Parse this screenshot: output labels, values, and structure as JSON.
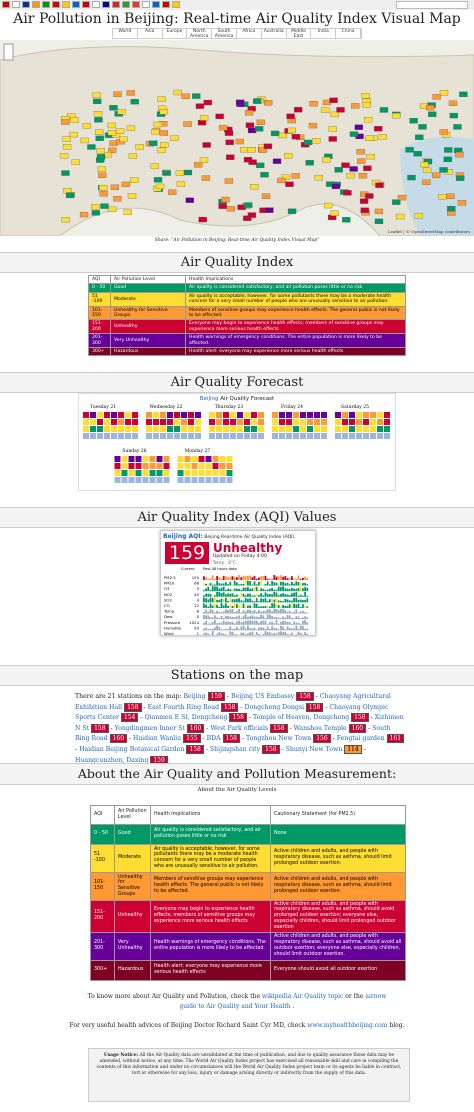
{
  "header": {
    "title": "Air Pollution in Beijing: Real-time Air Quality Index Visual Map",
    "nav": [
      "World",
      "Asia",
      "Europe",
      "North America",
      "South America",
      "Africa",
      "Australia",
      "Middle East",
      "India",
      "China"
    ]
  },
  "map": {
    "caption": "Share: \"Air Pollution in Beijing: Real-time Air Quality Index Visual Map\"",
    "attribution": "Leaflet | © OpenStreetMap contributors"
  },
  "aqi_scale": {
    "heading": "Air Quality Index",
    "colors": [
      "#009966",
      "#ffde33",
      "#ff9933",
      "#cc0033",
      "#660099",
      "#7e0023"
    ],
    "columns": [
      "AQI",
      "Air Pollution Level",
      "Health Implications"
    ],
    "rows": [
      [
        "0 - 50",
        "Good",
        "Air quality is considered satisfactory, and air pollution poses little or no risk"
      ],
      [
        "51 -100",
        "Moderate",
        "Air quality is acceptable; however, for some pollutants there may be a moderate health concern for a very small number of people who are unusually sensitive to air pollution."
      ],
      [
        "101-150",
        "Unhealthy for Sensitive Groups",
        "Members of sensitive groups may experience health effects. The general public is not likely to be affected."
      ],
      [
        "151-200",
        "Unhealthy",
        "Everyone may begin to experience health effects; members of sensitive groups may experience more serious health effects"
      ],
      [
        "201-300",
        "Very Unhealthy",
        "Health warnings of emergency conditions. The entire population is more likely to be affected."
      ],
      [
        "300+",
        "Hazardous",
        "Health alert: everyone may experience more serious health effects"
      ]
    ]
  },
  "forecast": {
    "heading": "Air Quality Forecast",
    "city": "Beijing",
    "subtitle": "Air Quality Forecast",
    "days": [
      "Tuesday 21",
      "Wednesday 22",
      "Thursday 23",
      "Friday 24",
      "Saturday 25",
      "Sunday 26",
      "Monday 27"
    ]
  },
  "realtime": {
    "heading": "Air Quality Index (AQI) Values",
    "city": "Beijing AQI:",
    "subtitle": "Beijing Real-time Air Quality Index (AQI).",
    "aqi": 159,
    "level": "Unhealthy",
    "updated": "Updated on Friday 4:00",
    "temp": "Temp.: 8°C",
    "columns": [
      "Current",
      "Past 48 hours data"
    ],
    "rows": [
      {
        "name": "PM2.5",
        "value": 159
      },
      {
        "name": "PM10",
        "value": 66
      },
      {
        "name": "O3",
        "value": 5
      },
      {
        "name": "NO2",
        "value": 40
      },
      {
        "name": "SO2",
        "value": 4
      },
      {
        "name": "CO",
        "value": 12
      },
      {
        "name": "Temp.",
        "value": 8
      },
      {
        "name": "Dew",
        "value": -5
      },
      {
        "name": "Pressure",
        "value": 1024
      },
      {
        "name": "Humidity",
        "value": 93
      },
      {
        "name": "Wind",
        "value": 1
      }
    ]
  },
  "stations": {
    "heading": "Stations on the map",
    "intro": "There are 21 stations on the map:",
    "list": [
      {
        "name": "Beijing",
        "aqi": 159
      },
      {
        "name": "Beijing US Embassy",
        "aqi": 158
      },
      {
        "name": "Chaoyang Agricultural Exhibition Hall",
        "aqi": 158
      },
      {
        "name": "East Fourth Ring Road",
        "aqi": 158
      },
      {
        "name": "Dongcheng Dongsi",
        "aqi": 158
      },
      {
        "name": "Chaoyang Olympic Sports Center",
        "aqi": 154
      },
      {
        "name": "Qianmen E St, Dongcheng",
        "aqi": 158
      },
      {
        "name": "Temple of Heaven, Dongcheng",
        "aqi": 158
      },
      {
        "name": "Xizhimen N St",
        "aqi": 158
      },
      {
        "name": "Yongdingmen Inner St",
        "aqi": 160
      },
      {
        "name": "West Park officials",
        "aqi": 158
      },
      {
        "name": "Wanshou Temple",
        "aqi": 160
      },
      {
        "name": "South Ring Road",
        "aqi": 160
      },
      {
        "name": "Haidian Wanliu",
        "aqi": 155
      },
      {
        "name": "BDA",
        "aqi": 158
      },
      {
        "name": "Tongzhou New Town",
        "aqi": 156
      },
      {
        "name": "Fengtai garden",
        "aqi": 161
      },
      {
        "name": "Haidian Beijing Botanical Garden",
        "aqi": 158
      },
      {
        "name": "Shijingshan city",
        "aqi": 158
      },
      {
        "name": "Shunyi New Town",
        "aqi": 114
      },
      {
        "name": "Huangcunzhen, Daxing",
        "aqi": 159
      }
    ]
  },
  "about": {
    "heading": "About the Air Quality and Pollution Measurement:",
    "subheading": "About the Air Quality Levels",
    "columns": [
      "AQI",
      "Air Pollution Level",
      "Health Implications",
      "Cautionary Statement (for PM2.5)"
    ],
    "rows": [
      [
        "0 - 50",
        "Good",
        "Air quality is considered satisfactory, and air pollution poses little or no risk",
        "None"
      ],
      [
        "51 -100",
        "Moderate",
        "Air quality is acceptable; however, for some pollutants there may be a moderate health concern for a very small number of people who are unusually sensitive to air pollution.",
        "Active children and adults, and people with respiratory disease, such as asthma, should limit prolonged outdoor exertion."
      ],
      [
        "101-150",
        "Unhealthy for Sensitive Groups",
        "Members of sensitive groups may experience health effects. The general public is not likely to be affected.",
        "Active children and adults, and people with respiratory disease, such as asthma, should limit prolonged outdoor exertion."
      ],
      [
        "151-200",
        "Unhealthy",
        "Everyone may begin to experience health effects; members of sensitive groups may experience more serious health effects",
        "Active children and adults, and people with respiratory disease, such as asthma, should avoid prolonged outdoor exertion; everyone else, especially children, should limit prolonged outdoor exertion"
      ],
      [
        "201-300",
        "Very Unhealthy",
        "Health warnings of emergency conditions. The entire population is more likely to be affected.",
        "Active children and adults, and people with respiratory disease, such as asthma, should avoid all outdoor exertion; everyone else, especially children, should limit outdoor exertion."
      ],
      [
        "300+",
        "Hazardous",
        "Health alert: everyone may experience more serious health effects",
        "Everyone should avoid all outdoor exertion"
      ]
    ],
    "more": [
      "To know more about Air Quality and Pollution, check the",
      "wikipedia Air Quality topic",
      "or the",
      "airnow guide to Air Quality and Your Health",
      "."
    ],
    "advice": [
      "For very useful health advices of Beijing Doctor Richard Saint Cyr MD, check",
      "www.myhealthbeijing.com",
      "blog."
    ]
  },
  "footer": {
    "label": "Usage Notice:",
    "text": "All the Air Quality data are unvalidated at the time of publication, and due to quality assurance these data may be amended, without notice, at any time. The World Air Quality Index project has exercised all reasonable skill and care in compiling the contents of this information and under no circumstances will the World Air Quality Index project team or its agents be liable in contract, tort or otherwise for any loss, injury or damage arising directly or indirectly from the supply of this data."
  }
}
